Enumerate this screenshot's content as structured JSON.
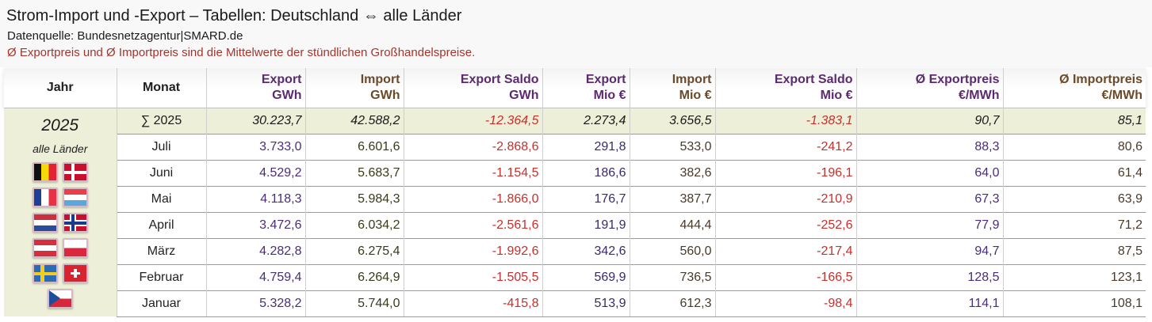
{
  "header": {
    "title": "Strom-Import und -Export – Tabellen: Deutschland ⇔ alle Länder",
    "source": "Datenquelle: Bundesnetzagentur|SMARD.de",
    "note": "Ø Exportpreis und Ø Importpreis sind die Mittelwerte der stündlichen Großhandelspreise."
  },
  "sidebar": {
    "year": "2025",
    "country": "alle Länder",
    "flags": [
      "belgium-flag",
      "denmark-flag",
      "france-flag",
      "luxembourg-flag",
      "netherlands-flag",
      "norway-flag",
      "austria-flag",
      "poland-flag",
      "sweden-flag",
      "switzerland-flag",
      "czech-flag"
    ]
  },
  "columns": {
    "jahr": "Jahr",
    "monat": "Monat",
    "export_gwh": [
      "Export",
      "GWh"
    ],
    "import_gwh": [
      "Import",
      "GWh"
    ],
    "saldo_gwh": [
      "Export Saldo",
      "GWh"
    ],
    "export_eur": [
      "Export",
      "Mio €"
    ],
    "import_eur": [
      "Import",
      "Mio €"
    ],
    "saldo_eur": [
      "Export Saldo",
      "Mio €"
    ],
    "export_price": [
      "Ø Exportpreis",
      "€/MWh"
    ],
    "import_price": [
      "Ø Importpreis",
      "€/MWh"
    ]
  },
  "sum_row": {
    "label": "∑ 2025",
    "export_gwh": "30.223,7",
    "import_gwh": "42.588,2",
    "saldo_gwh": "-12.364,5",
    "export_eur": "2.273,4",
    "import_eur": "3.656,5",
    "saldo_eur": "-1.383,1",
    "export_price": "90,7",
    "import_price": "85,1"
  },
  "rows": [
    {
      "monat": "Juli",
      "export_gwh": "3.733,0",
      "import_gwh": "6.601,6",
      "saldo_gwh": "-2.868,6",
      "export_eur": "291,8",
      "import_eur": "533,0",
      "saldo_eur": "-241,2",
      "export_price": "88,3",
      "import_price": "80,6"
    },
    {
      "monat": "Juni",
      "export_gwh": "4.529,2",
      "import_gwh": "5.683,7",
      "saldo_gwh": "-1.154,5",
      "export_eur": "186,6",
      "import_eur": "382,6",
      "saldo_eur": "-196,1",
      "export_price": "64,0",
      "import_price": "61,4"
    },
    {
      "monat": "Mai",
      "export_gwh": "4.118,3",
      "import_gwh": "5.984,3",
      "saldo_gwh": "-1.866,0",
      "export_eur": "176,7",
      "import_eur": "387,7",
      "saldo_eur": "-210,9",
      "export_price": "67,3",
      "import_price": "63,9"
    },
    {
      "monat": "April",
      "export_gwh": "3.472,6",
      "import_gwh": "6.034,2",
      "saldo_gwh": "-2.561,6",
      "export_eur": "191,9",
      "import_eur": "444,4",
      "saldo_eur": "-252,6",
      "export_price": "77,9",
      "import_price": "71,2"
    },
    {
      "monat": "März",
      "export_gwh": "4.282,8",
      "import_gwh": "6.275,4",
      "saldo_gwh": "-1.992,6",
      "export_eur": "342,6",
      "import_eur": "560,0",
      "saldo_eur": "-217,4",
      "export_price": "94,7",
      "import_price": "87,5"
    },
    {
      "monat": "Februar",
      "export_gwh": "4.759,4",
      "import_gwh": "6.264,9",
      "saldo_gwh": "-1.505,5",
      "export_eur": "569,9",
      "import_eur": "736,5",
      "saldo_eur": "-166,5",
      "export_price": "128,5",
      "import_price": "123,1"
    },
    {
      "monat": "Januar",
      "export_gwh": "5.328,2",
      "import_gwh": "5.744,0",
      "saldo_gwh": "-415,8",
      "export_eur": "513,9",
      "import_eur": "612,3",
      "saldo_eur": "-98,4",
      "export_price": "114,1",
      "import_price": "108,1"
    }
  ]
}
